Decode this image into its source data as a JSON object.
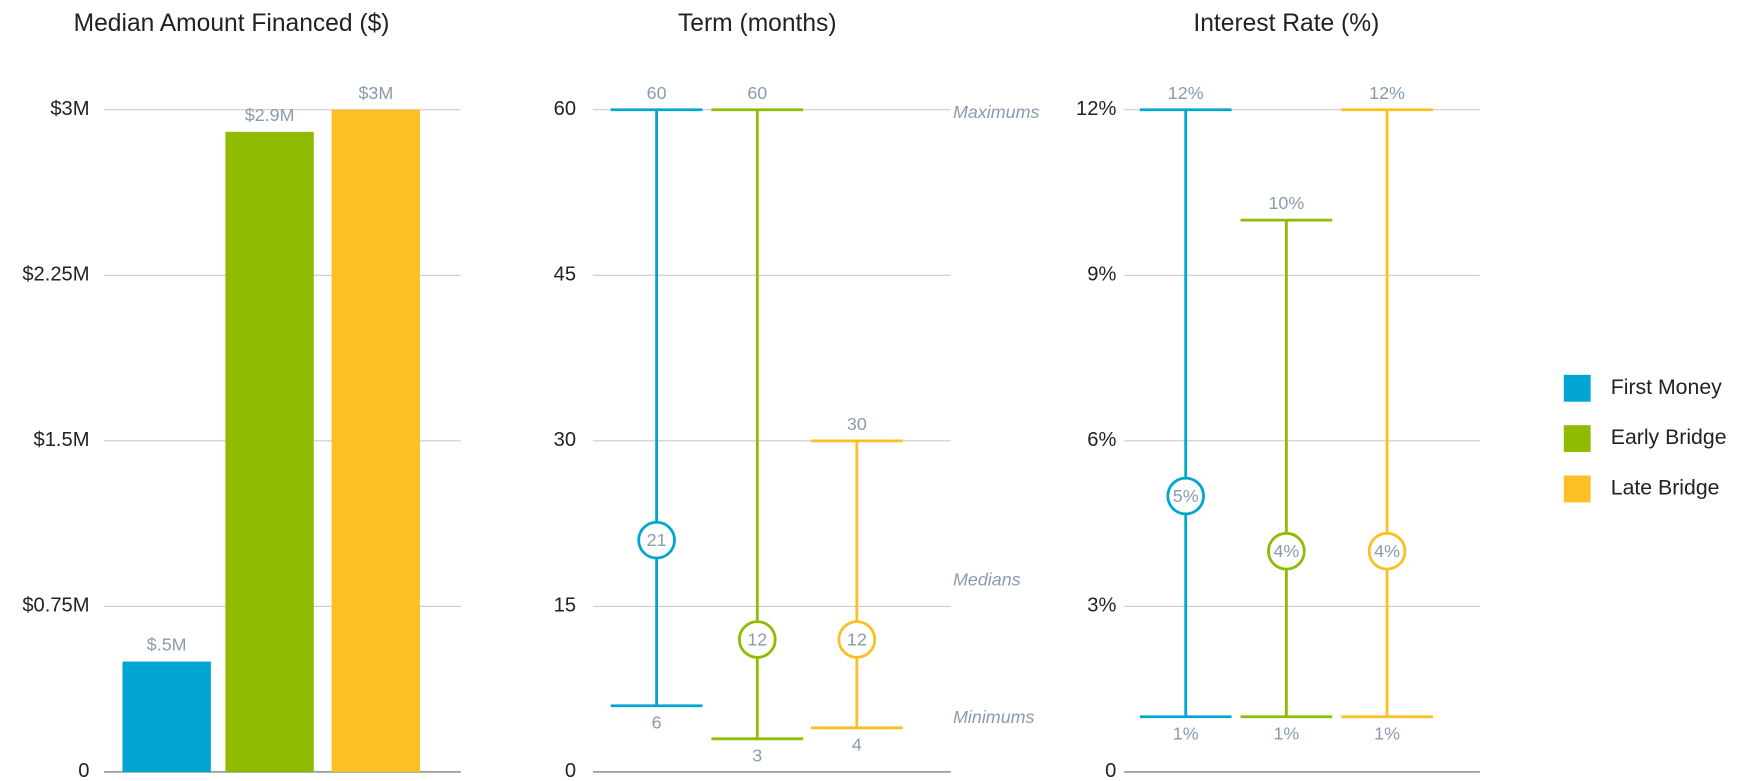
{
  "chart_data": [
    {
      "type": "bar",
      "title": "Median Amount Financed ($)",
      "values": [
        500000,
        2900000,
        3000000
      ],
      "value_labels": [
        "$.5M",
        "$2.9M",
        "$3M"
      ],
      "ylim": [
        0,
        3000000
      ],
      "yticks": [
        0,
        {
          "value": 750000,
          "label": "$0.75M"
        },
        {
          "value": 1500000,
          "label": "$1.5M"
        },
        {
          "value": 2250000,
          "label": "$2.25M"
        },
        {
          "value": 3000000,
          "label": "$3M"
        }
      ],
      "grid": true
    },
    {
      "type": "range",
      "title": "Term (months)",
      "minimums": [
        6,
        3,
        4
      ],
      "medians": [
        21,
        12,
        12
      ],
      "maximums": [
        60,
        60,
        30
      ],
      "ylim": [
        0,
        60
      ],
      "yticks": [
        0,
        15,
        30,
        45,
        60
      ],
      "grid": true,
      "annotations": {
        "maximums": "Maximums",
        "medians": "Medians",
        "minimums": "Minimums"
      }
    },
    {
      "type": "range",
      "title": "Interest Rate (%)",
      "minimums": [
        1,
        1,
        1
      ],
      "medians": [
        5,
        4,
        4
      ],
      "maximums": [
        12,
        10,
        12
      ],
      "value_labels": {
        "minimums": [
          "1%",
          "1%",
          "1%"
        ],
        "medians": [
          "5%",
          "4%",
          "4%"
        ],
        "maximums": [
          "12%",
          "10%",
          "12%"
        ]
      },
      "ylim": [
        0,
        12
      ],
      "yticks": [
        0,
        {
          "value": 3,
          "label": "3%"
        },
        {
          "value": 6,
          "label": "6%"
        },
        {
          "value": 9,
          "label": "9%"
        },
        {
          "value": 12,
          "label": "12%"
        }
      ],
      "grid": true
    }
  ],
  "legend": {
    "position": "right",
    "items": [
      {
        "name": "First Money",
        "color": "#00a6d1"
      },
      {
        "name": "Early Bridge",
        "color": "#8fbc00"
      },
      {
        "name": "Late Bridge",
        "color": "#fcbf24"
      }
    ]
  }
}
